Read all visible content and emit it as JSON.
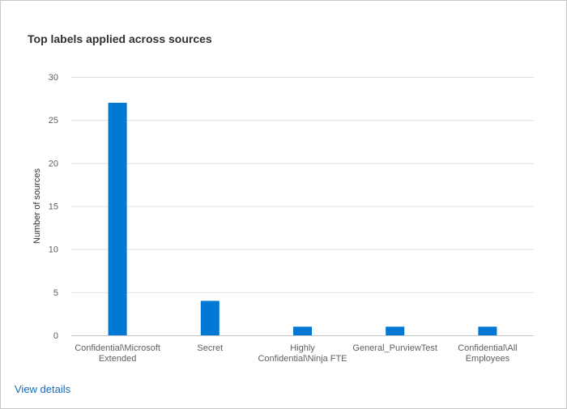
{
  "card": {
    "title": "Top labels applied across sources",
    "view_details_label": "View details"
  },
  "colors": {
    "bar": "#0078d4",
    "grid": "#e1dfdd",
    "axis": "#c8c6c4",
    "tick_text": "#605e5c",
    "title_text": "#323130",
    "link": "#0f6cbd"
  },
  "chart_data": {
    "type": "bar",
    "title": "Top labels applied across sources",
    "xlabel": "",
    "ylabel": "Number of sources",
    "ylim": [
      0,
      30
    ],
    "yticks": [
      0,
      5,
      10,
      15,
      20,
      25,
      30
    ],
    "grid": true,
    "legend": "none",
    "categories": [
      [
        "Confidential\\Microsoft",
        "Extended"
      ],
      [
        "Secret"
      ],
      [
        "Highly",
        "Confidential\\Ninja FTE"
      ],
      [
        "General_PurviewTest"
      ],
      [
        "Confidential\\All",
        "Employees"
      ]
    ],
    "values": [
      27,
      4,
      1,
      1,
      1
    ]
  }
}
